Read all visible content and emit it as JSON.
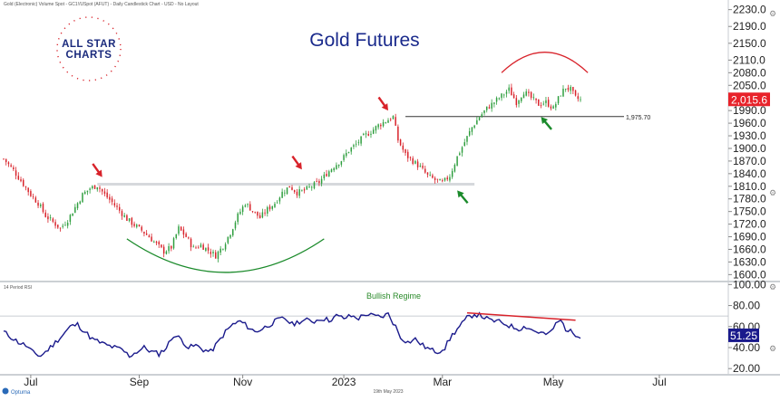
{
  "header": {
    "info_line": "Gold (Electronic) Volume Spot - GC1!/USpot (AFUT) - Daily Candlestick Chart - USD - No Layout",
    "brand_line1": "ALL STAR",
    "brand_line2": "CHARTS"
  },
  "colors": {
    "bull": "#2e9e3e",
    "bear": "#d8222a",
    "rsi_line": "#1a1a8c",
    "title": "#1a2a8c",
    "arrow_red": "#d8222a",
    "arrow_green": "#1a8a2a",
    "badge_price": "#e8222a",
    "badge_rsi": "#1a1a8c"
  },
  "chart_data": [
    {
      "type": "candlestick",
      "title": "Gold Futures",
      "y_ticks": [
        "2230.0",
        "2190.0",
        "2150.0",
        "2110.0",
        "2080.0",
        "2050.0",
        "2020.0",
        "1990.0",
        "1960.0",
        "1930.0",
        "1900.0",
        "1870.0",
        "1840.0",
        "1810.0",
        "1780.0",
        "1750.0",
        "1720.0",
        "1690.0",
        "1660.0",
        "1630.0",
        "1600.0"
      ],
      "ylim": [
        1590,
        2240
      ],
      "x_ticks": [
        "Jul",
        "Sep",
        "Nov",
        "2023",
        "Mar",
        "May",
        "Jul"
      ],
      "last_price": "2,015.6",
      "resistance_level": 1975.7,
      "resistance_label": "1,975.70",
      "support_level": 1815,
      "close_path": [
        [
          0,
          1875
        ],
        [
          4,
          1848
        ],
        [
          8,
          1815
        ],
        [
          11,
          1790
        ],
        [
          14,
          1770
        ],
        [
          17,
          1740
        ],
        [
          20,
          1725
        ],
        [
          23,
          1710
        ],
        [
          26,
          1730
        ],
        [
          29,
          1760
        ],
        [
          32,
          1790
        ],
        [
          35,
          1805
        ],
        [
          38,
          1812
        ],
        [
          41,
          1790
        ],
        [
          44,
          1772
        ],
        [
          47,
          1752
        ],
        [
          50,
          1732
        ],
        [
          53,
          1718
        ],
        [
          56,
          1705
        ],
        [
          59,
          1690
        ],
        [
          62,
          1672
        ],
        [
          65,
          1655
        ],
        [
          68,
          1665
        ],
        [
          71,
          1710
        ],
        [
          74,
          1690
        ],
        [
          77,
          1662
        ],
        [
          80,
          1670
        ],
        [
          83,
          1658
        ],
        [
          86,
          1645
        ],
        [
          89,
          1668
        ],
        [
          92,
          1700
        ],
        [
          95,
          1740
        ],
        [
          98,
          1770
        ],
        [
          101,
          1752
        ],
        [
          104,
          1735
        ],
        [
          107,
          1755
        ],
        [
          110,
          1770
        ],
        [
          113,
          1795
        ],
        [
          116,
          1810
        ],
        [
          119,
          1795
        ],
        [
          122,
          1800
        ],
        [
          125,
          1810
        ],
        [
          128,
          1820
        ],
        [
          131,
          1840
        ],
        [
          134,
          1858
        ],
        [
          137,
          1872
        ],
        [
          140,
          1895
        ],
        [
          143,
          1910
        ],
        [
          146,
          1928
        ],
        [
          149,
          1940
        ],
        [
          152,
          1955
        ],
        [
          155,
          1965
        ],
        [
          158,
          1975
        ],
        [
          160,
          1920
        ],
        [
          163,
          1885
        ],
        [
          166,
          1870
        ],
        [
          169,
          1855
        ],
        [
          172,
          1835
        ],
        [
          175,
          1825
        ],
        [
          178,
          1818
        ],
        [
          181,
          1835
        ],
        [
          184,
          1880
        ],
        [
          187,
          1915
        ],
        [
          190,
          1950
        ],
        [
          193,
          1975
        ],
        [
          196,
          1995
        ],
        [
          199,
          2010
        ],
        [
          202,
          2025
        ],
        [
          205,
          2040
        ],
        [
          208,
          2010
        ],
        [
          211,
          2035
        ],
        [
          214,
          2020
        ],
        [
          217,
          2005
        ],
        [
          220,
          2010
        ],
        [
          223,
          1995
        ],
        [
          226,
          2030
        ],
        [
          228,
          2045
        ],
        [
          230,
          2040
        ],
        [
          232,
          2020
        ],
        [
          234,
          2015
        ]
      ],
      "annotations": {
        "red_arrows_at": [
          [
            40,
            1832
          ],
          [
            121,
            1850
          ],
          [
            156,
            1990
          ]
        ],
        "green_arrows_at": [
          [
            184,
            1800
          ],
          [
            218,
            1975
          ]
        ]
      }
    },
    {
      "type": "line",
      "title": "14 Period RSI",
      "annotation": "Bullish Regime",
      "y_ticks": [
        "100.00",
        "80.00",
        "60.00",
        "40.00",
        "20.00"
      ],
      "ylim": [
        15,
        102
      ],
      "last_value": "51.25",
      "bull_level": 70,
      "path": [
        [
          0,
          55
        ],
        [
          3,
          50
        ],
        [
          6,
          45
        ],
        [
          9,
          42
        ],
        [
          12,
          35
        ],
        [
          15,
          32
        ],
        [
          18,
          38
        ],
        [
          21,
          45
        ],
        [
          24,
          52
        ],
        [
          27,
          60
        ],
        [
          30,
          62
        ],
        [
          33,
          55
        ],
        [
          36,
          48
        ],
        [
          39,
          45
        ],
        [
          42,
          42
        ],
        [
          45,
          40
        ],
        [
          48,
          38
        ],
        [
          51,
          32
        ],
        [
          54,
          36
        ],
        [
          57,
          40
        ],
        [
          60,
          36
        ],
        [
          63,
          34
        ],
        [
          66,
          40
        ],
        [
          69,
          52
        ],
        [
          72,
          48
        ],
        [
          75,
          40
        ],
        [
          78,
          42
        ],
        [
          81,
          38
        ],
        [
          84,
          36
        ],
        [
          87,
          45
        ],
        [
          90,
          55
        ],
        [
          93,
          62
        ],
        [
          96,
          65
        ],
        [
          99,
          60
        ],
        [
          102,
          55
        ],
        [
          105,
          58
        ],
        [
          108,
          62
        ],
        [
          111,
          66
        ],
        [
          114,
          68
        ],
        [
          117,
          62
        ],
        [
          120,
          65
        ],
        [
          123,
          66
        ],
        [
          126,
          65
        ],
        [
          129,
          68
        ],
        [
          132,
          66
        ],
        [
          135,
          70
        ],
        [
          138,
          68
        ],
        [
          141,
          70
        ],
        [
          144,
          68
        ],
        [
          147,
          72
        ],
        [
          150,
          70
        ],
        [
          153,
          69
        ],
        [
          156,
          72
        ],
        [
          159,
          60
        ],
        [
          161,
          50
        ],
        [
          164,
          45
        ],
        [
          167,
          48
        ],
        [
          170,
          42
        ],
        [
          173,
          38
        ],
        [
          176,
          36
        ],
        [
          179,
          40
        ],
        [
          182,
          52
        ],
        [
          185,
          60
        ],
        [
          188,
          68
        ],
        [
          191,
          72
        ],
        [
          194,
          70
        ],
        [
          197,
          66
        ],
        [
          200,
          65
        ],
        [
          203,
          63
        ],
        [
          206,
          60
        ],
        [
          209,
          58
        ],
        [
          212,
          60
        ],
        [
          215,
          56
        ],
        [
          218,
          54
        ],
        [
          221,
          52
        ],
        [
          224,
          62
        ],
        [
          226,
          66
        ],
        [
          228,
          58
        ],
        [
          230,
          55
        ],
        [
          232,
          53
        ],
        [
          234,
          51.25
        ]
      ],
      "divergence_line": [
        [
          188,
          73
        ],
        [
          232,
          66
        ]
      ]
    }
  ],
  "footer": {
    "brand": "Optuma",
    "date_note": "19th May 2023"
  }
}
